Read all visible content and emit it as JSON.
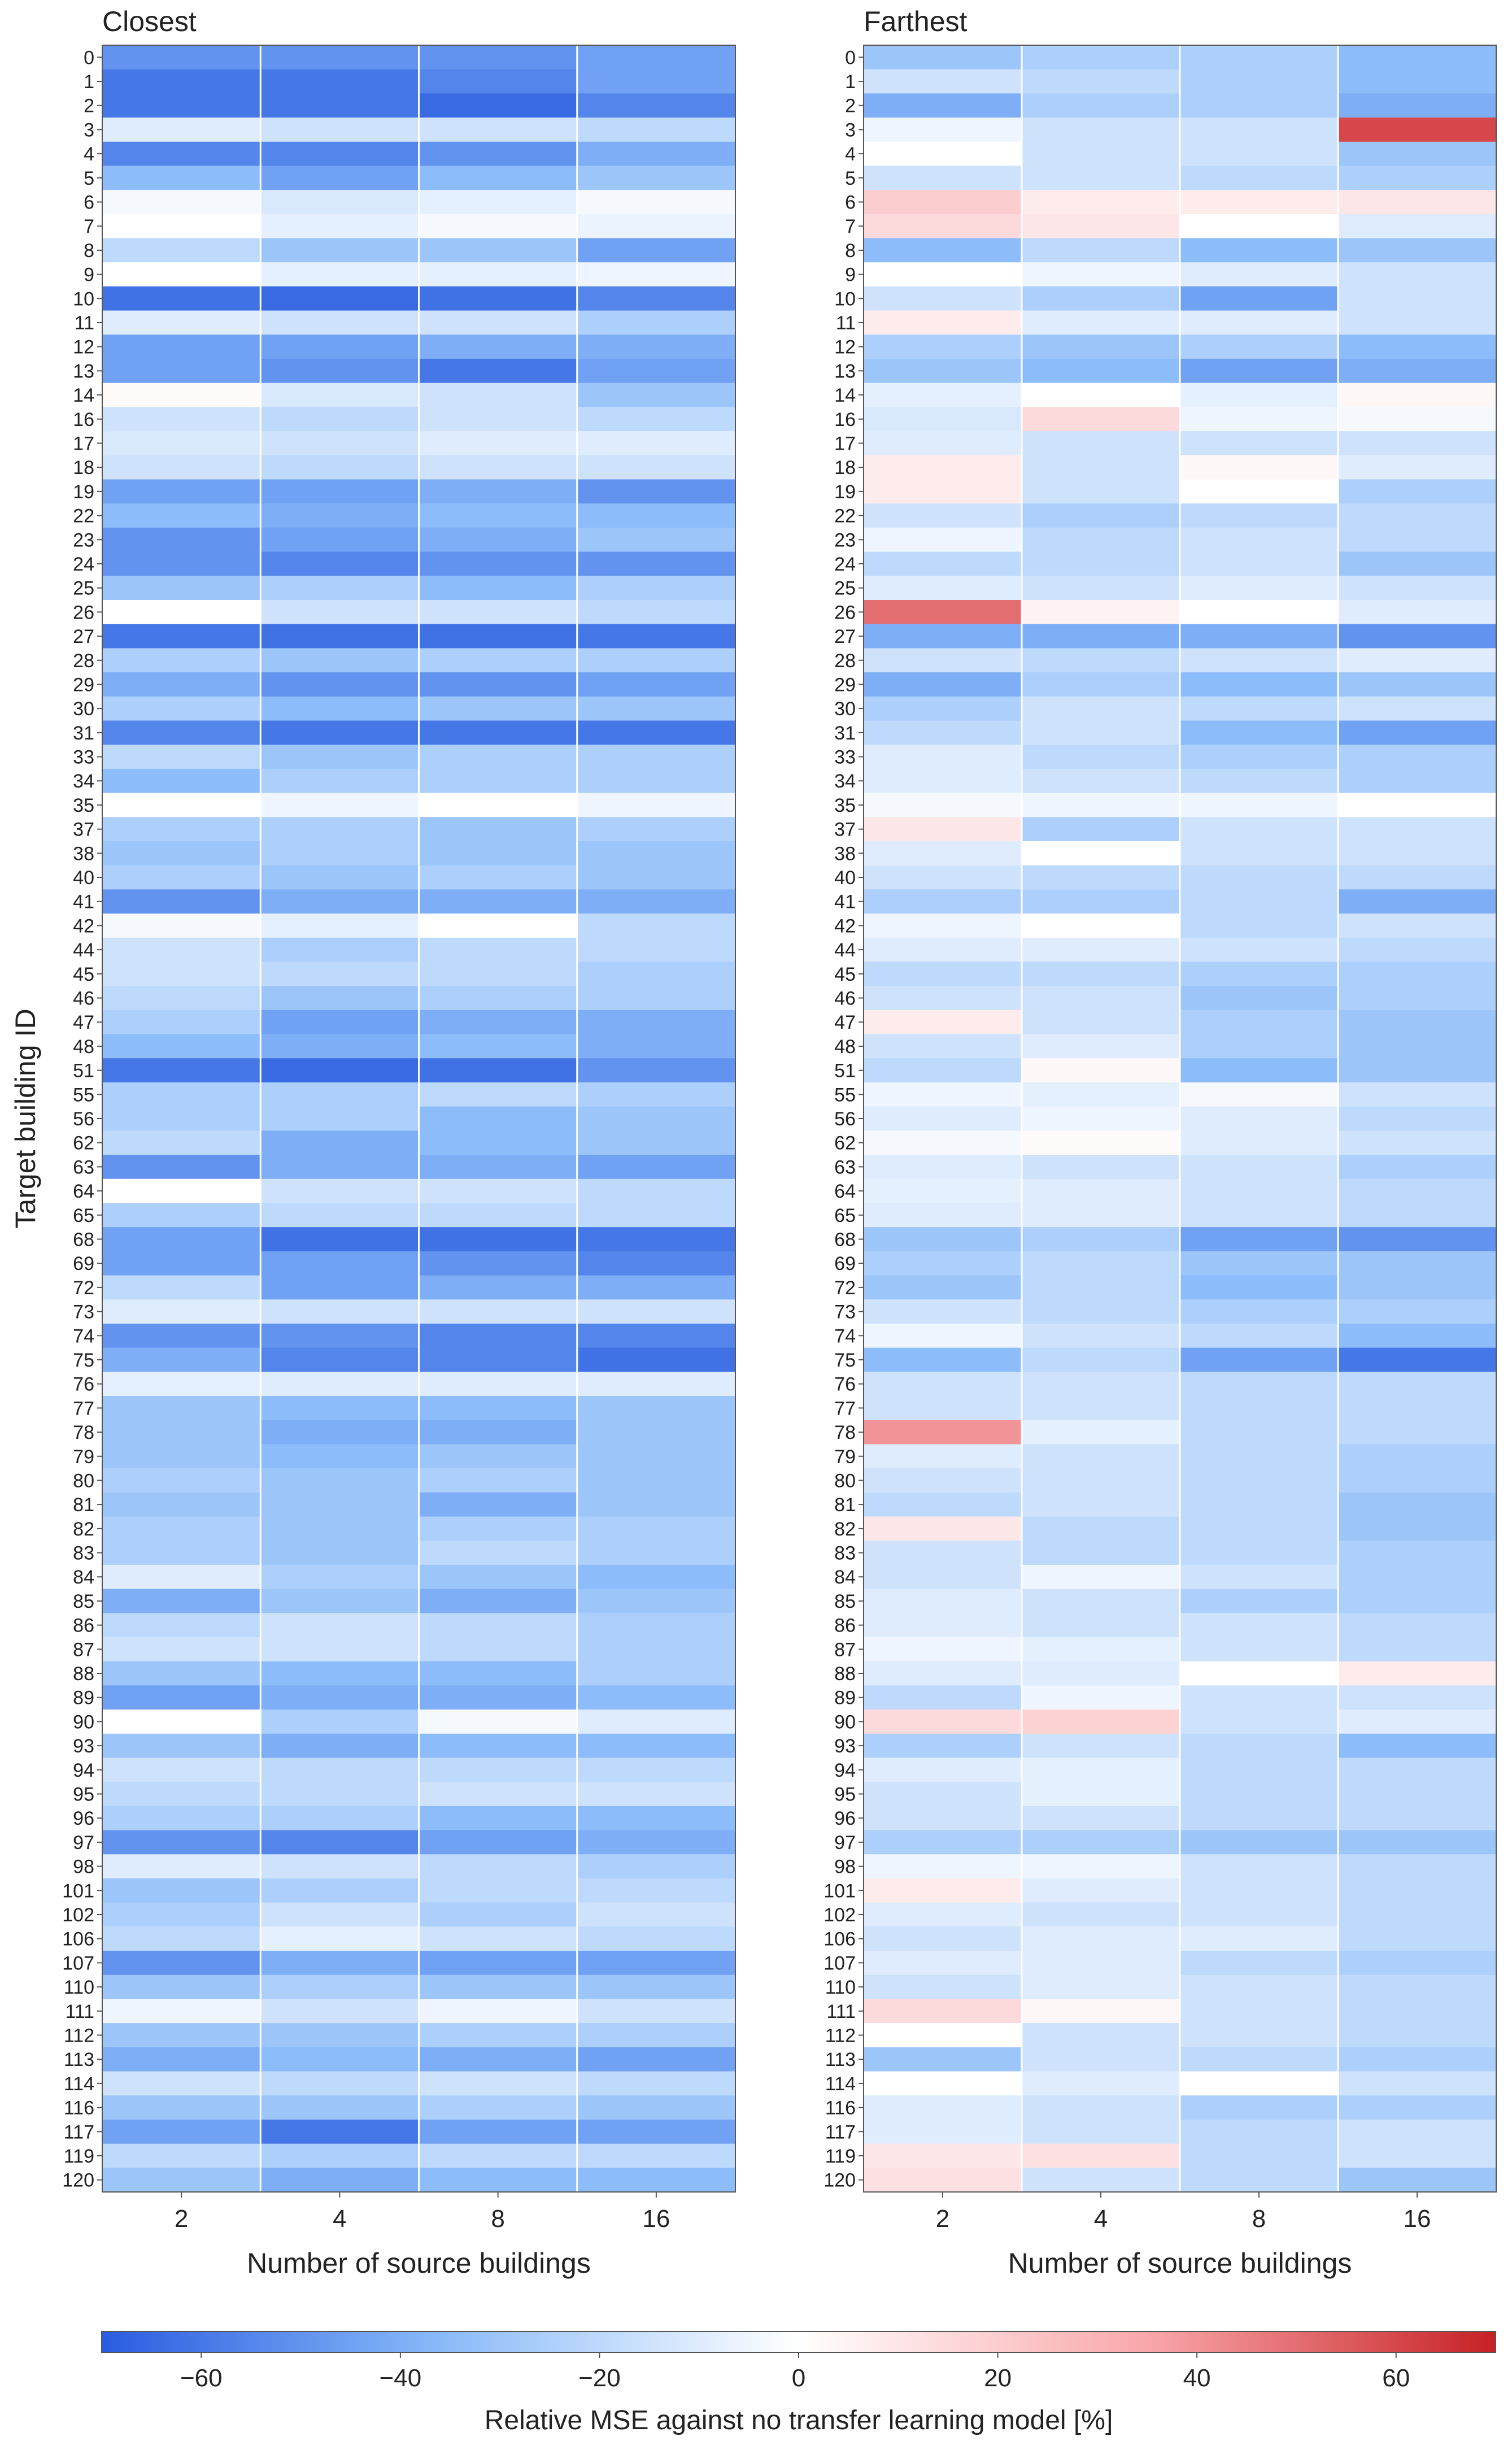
{
  "chart_data": [
    {
      "type": "heatmap",
      "title": "Closest",
      "xlabel": "Number of source buildings",
      "ylabel": "Target building ID",
      "x_categories": [
        "2",
        "4",
        "8",
        "16"
      ],
      "y_categories": [
        "0",
        "1",
        "2",
        "3",
        "4",
        "5",
        "6",
        "7",
        "8",
        "9",
        "10",
        "11",
        "12",
        "13",
        "14",
        "16",
        "17",
        "18",
        "19",
        "22",
        "23",
        "24",
        "25",
        "26",
        "27",
        "28",
        "29",
        "30",
        "31",
        "33",
        "34",
        "35",
        "37",
        "38",
        "40",
        "41",
        "42",
        "44",
        "45",
        "46",
        "47",
        "48",
        "51",
        "55",
        "56",
        "62",
        "63",
        "64",
        "65",
        "68",
        "69",
        "72",
        "73",
        "74",
        "75",
        "76",
        "77",
        "78",
        "79",
        "80",
        "81",
        "82",
        "83",
        "84",
        "85",
        "86",
        "87",
        "88",
        "89",
        "90",
        "93",
        "94",
        "95",
        "96",
        "97",
        "98",
        "101",
        "102",
        "106",
        "107",
        "110",
        "111",
        "112",
        "113",
        "114",
        "116",
        "117",
        "119",
        "120"
      ],
      "values": [
        [
          -50,
          -50,
          -50,
          -45
        ],
        [
          -60,
          -60,
          -55,
          -45
        ],
        [
          -60,
          -60,
          -65,
          -55
        ],
        [
          -10,
          -15,
          -15,
          -20
        ],
        [
          -55,
          -55,
          -50,
          -40
        ],
        [
          -35,
          -45,
          -35,
          -30
        ],
        [
          -3,
          -12,
          -8,
          -3
        ],
        [
          0,
          -8,
          -3,
          -6
        ],
        [
          -20,
          -30,
          -30,
          -45
        ],
        [
          0,
          -8,
          -8,
          -5
        ],
        [
          -62,
          -65,
          -62,
          -55
        ],
        [
          -10,
          -15,
          -15,
          -25
        ],
        [
          -45,
          -45,
          -40,
          -40
        ],
        [
          -45,
          -50,
          -60,
          -45
        ],
        [
          2,
          -12,
          -15,
          -30
        ],
        [
          -15,
          -20,
          -15,
          -20
        ],
        [
          -12,
          -15,
          -10,
          -10
        ],
        [
          -15,
          -20,
          -15,
          -15
        ],
        [
          -45,
          -45,
          -40,
          -50
        ],
        [
          -35,
          -40,
          -35,
          -35
        ],
        [
          -50,
          -45,
          -40,
          -30
        ],
        [
          -50,
          -55,
          -50,
          -50
        ],
        [
          -30,
          -25,
          -35,
          -25
        ],
        [
          0,
          -15,
          -15,
          -20
        ],
        [
          -60,
          -62,
          -62,
          -60
        ],
        [
          -25,
          -30,
          -25,
          -25
        ],
        [
          -40,
          -50,
          -50,
          -45
        ],
        [
          -25,
          -35,
          -30,
          -30
        ],
        [
          -55,
          -60,
          -60,
          -60
        ],
        [
          -20,
          -30,
          -25,
          -25
        ],
        [
          -35,
          -25,
          -25,
          -25
        ],
        [
          0,
          -5,
          0,
          -5
        ],
        [
          -25,
          -25,
          -30,
          -25
        ],
        [
          -30,
          -25,
          -30,
          -30
        ],
        [
          -25,
          -30,
          -25,
          -30
        ],
        [
          -50,
          -40,
          -40,
          -40
        ],
        [
          -3,
          -8,
          0,
          -20
        ],
        [
          -15,
          -25,
          -20,
          -20
        ],
        [
          -15,
          -20,
          -20,
          -25
        ],
        [
          -20,
          -30,
          -25,
          -25
        ],
        [
          -25,
          -45,
          -40,
          -40
        ],
        [
          -35,
          -40,
          -35,
          -40
        ],
        [
          -60,
          -65,
          -62,
          -50
        ],
        [
          -25,
          -25,
          -20,
          -25
        ],
        [
          -25,
          -25,
          -35,
          -30
        ],
        [
          -20,
          -40,
          -35,
          -30
        ],
        [
          -50,
          -40,
          -40,
          -45
        ],
        [
          0,
          -15,
          -15,
          -20
        ],
        [
          -25,
          -20,
          -20,
          -20
        ],
        [
          -45,
          -62,
          -62,
          -60
        ],
        [
          -45,
          -45,
          -50,
          -55
        ],
        [
          -20,
          -45,
          -40,
          -40
        ],
        [
          -10,
          -15,
          -15,
          -15
        ],
        [
          -50,
          -50,
          -55,
          -55
        ],
        [
          -40,
          -55,
          -55,
          -62
        ],
        [
          -8,
          -10,
          -10,
          -10
        ],
        [
          -30,
          -35,
          -35,
          -30
        ],
        [
          -30,
          -40,
          -40,
          -30
        ],
        [
          -30,
          -35,
          -30,
          -30
        ],
        [
          -25,
          -30,
          -25,
          -30
        ],
        [
          -30,
          -30,
          -40,
          -30
        ],
        [
          -25,
          -30,
          -25,
          -25
        ],
        [
          -25,
          -30,
          -20,
          -25
        ],
        [
          -10,
          -25,
          -30,
          -35
        ],
        [
          -40,
          -30,
          -40,
          -30
        ],
        [
          -20,
          -15,
          -20,
          -25
        ],
        [
          -15,
          -15,
          -20,
          -25
        ],
        [
          -30,
          -35,
          -35,
          -25
        ],
        [
          -45,
          -40,
          -40,
          -35
        ],
        [
          0,
          -25,
          -3,
          -10
        ],
        [
          -30,
          -40,
          -35,
          -35
        ],
        [
          -15,
          -20,
          -20,
          -20
        ],
        [
          -20,
          -20,
          -15,
          -15
        ],
        [
          -25,
          -25,
          -35,
          -35
        ],
        [
          -50,
          -55,
          -45,
          -40
        ],
        [
          -10,
          -15,
          -20,
          -25
        ],
        [
          -30,
          -25,
          -20,
          -20
        ],
        [
          -25,
          -15,
          -25,
          -15
        ],
        [
          -20,
          -8,
          -15,
          -20
        ],
        [
          -50,
          -40,
          -45,
          -45
        ],
        [
          -30,
          -25,
          -30,
          -30
        ],
        [
          -5,
          -15,
          -5,
          -15
        ],
        [
          -30,
          -30,
          -25,
          -25
        ],
        [
          -40,
          -35,
          -40,
          -45
        ],
        [
          -15,
          -20,
          -15,
          -20
        ],
        [
          -30,
          -30,
          -25,
          -30
        ],
        [
          -45,
          -60,
          -45,
          -45
        ],
        [
          -20,
          -25,
          -20,
          -20
        ],
        [
          -30,
          -40,
          -35,
          -35
        ]
      ]
    },
    {
      "type": "heatmap",
      "title": "Farthest",
      "xlabel": "Number of source buildings",
      "ylabel": "",
      "x_categories": [
        "2",
        "4",
        "8",
        "16"
      ],
      "y_categories": [
        "0",
        "1",
        "2",
        "3",
        "4",
        "5",
        "6",
        "7",
        "8",
        "9",
        "10",
        "11",
        "12",
        "13",
        "14",
        "16",
        "17",
        "18",
        "19",
        "22",
        "23",
        "24",
        "25",
        "26",
        "27",
        "28",
        "29",
        "30",
        "31",
        "33",
        "34",
        "35",
        "37",
        "38",
        "40",
        "41",
        "42",
        "44",
        "45",
        "46",
        "47",
        "48",
        "51",
        "55",
        "56",
        "62",
        "63",
        "64",
        "65",
        "68",
        "69",
        "72",
        "73",
        "74",
        "75",
        "76",
        "77",
        "78",
        "79",
        "80",
        "81",
        "82",
        "83",
        "84",
        "85",
        "86",
        "87",
        "88",
        "89",
        "90",
        "93",
        "94",
        "95",
        "96",
        "97",
        "98",
        "101",
        "102",
        "106",
        "107",
        "110",
        "111",
        "112",
        "113",
        "114",
        "116",
        "117",
        "119",
        "120"
      ],
      "values": [
        [
          -30,
          -25,
          -25,
          -35
        ],
        [
          -15,
          -20,
          -25,
          -35
        ],
        [
          -40,
          -25,
          -25,
          -40
        ],
        [
          -5,
          -15,
          -15,
          60
        ],
        [
          0,
          -15,
          -15,
          -30
        ],
        [
          -15,
          -15,
          -20,
          -25
        ],
        [
          20,
          8,
          8,
          10
        ],
        [
          15,
          10,
          0,
          -10
        ],
        [
          -35,
          -20,
          -35,
          -30
        ],
        [
          0,
          -5,
          -10,
          -15
        ],
        [
          -15,
          -25,
          -45,
          -15
        ],
        [
          8,
          -10,
          -10,
          -15
        ],
        [
          -25,
          -30,
          -25,
          -35
        ],
        [
          -30,
          -35,
          -45,
          -40
        ],
        [
          -8,
          0,
          -8,
          3
        ],
        [
          -12,
          15,
          -5,
          -3
        ],
        [
          -10,
          -15,
          -15,
          -15
        ],
        [
          8,
          -15,
          3,
          -10
        ],
        [
          8,
          -15,
          0,
          -25
        ],
        [
          -15,
          -25,
          -20,
          -20
        ],
        [
          -5,
          -20,
          -15,
          -20
        ],
        [
          -20,
          -20,
          -15,
          -30
        ],
        [
          -10,
          -15,
          -10,
          -15
        ],
        [
          50,
          5,
          0,
          -10
        ],
        [
          -40,
          -40,
          -40,
          -50
        ],
        [
          -15,
          -20,
          -15,
          -10
        ],
        [
          -40,
          -25,
          -35,
          -30
        ],
        [
          -25,
          -15,
          -20,
          -15
        ],
        [
          -20,
          -15,
          -35,
          -45
        ],
        [
          -10,
          -20,
          -25,
          -25
        ],
        [
          -10,
          -15,
          -20,
          -25
        ],
        [
          -3,
          -5,
          -5,
          0
        ],
        [
          10,
          -25,
          -15,
          -15
        ],
        [
          -10,
          0,
          -15,
          -15
        ],
        [
          -15,
          -20,
          -20,
          -20
        ],
        [
          -25,
          -25,
          -20,
          -40
        ],
        [
          -5,
          0,
          -20,
          -15
        ],
        [
          -10,
          -10,
          -15,
          -20
        ],
        [
          -20,
          -20,
          -25,
          -25
        ],
        [
          -15,
          -15,
          -30,
          -25
        ],
        [
          8,
          -15,
          -25,
          -30
        ],
        [
          -15,
          -10,
          -25,
          -30
        ],
        [
          -20,
          3,
          -35,
          -30
        ],
        [
          -5,
          -8,
          -3,
          -15
        ],
        [
          -10,
          -5,
          -10,
          -20
        ],
        [
          -3,
          2,
          -10,
          -15
        ],
        [
          -10,
          -15,
          -15,
          -25
        ],
        [
          -8,
          -10,
          -15,
          -20
        ],
        [
          -10,
          -10,
          -15,
          -20
        ],
        [
          -30,
          -25,
          -45,
          -50
        ],
        [
          -25,
          -20,
          -30,
          -30
        ],
        [
          -30,
          -20,
          -35,
          -30
        ],
        [
          -15,
          -20,
          -25,
          -25
        ],
        [
          -5,
          -15,
          -20,
          -35
        ],
        [
          -35,
          -20,
          -45,
          -60
        ],
        [
          -15,
          -15,
          -20,
          -20
        ],
        [
          -15,
          -15,
          -20,
          -20
        ],
        [
          40,
          -8,
          -20,
          -20
        ],
        [
          -10,
          -15,
          -20,
          -25
        ],
        [
          -15,
          -15,
          -20,
          -25
        ],
        [
          -20,
          -15,
          -20,
          -30
        ],
        [
          10,
          -20,
          -20,
          -30
        ],
        [
          -15,
          -20,
          -20,
          -25
        ],
        [
          -15,
          -5,
          -15,
          -25
        ],
        [
          -10,
          -15,
          -25,
          -25
        ],
        [
          -10,
          -15,
          -15,
          -20
        ],
        [
          -5,
          -8,
          -15,
          -20
        ],
        [
          -10,
          -10,
          0,
          8
        ],
        [
          -20,
          -5,
          -15,
          -15
        ],
        [
          15,
          18,
          -15,
          -10
        ],
        [
          -25,
          -15,
          -20,
          -35
        ],
        [
          -10,
          -8,
          -20,
          -20
        ],
        [
          -15,
          -8,
          -20,
          -20
        ],
        [
          -15,
          -15,
          -20,
          -20
        ],
        [
          -25,
          -25,
          -30,
          -30
        ],
        [
          -5,
          -5,
          -15,
          -20
        ],
        [
          8,
          -10,
          -15,
          -20
        ],
        [
          -10,
          -15,
          -15,
          -20
        ],
        [
          -15,
          -10,
          -10,
          -20
        ],
        [
          -10,
          -10,
          -20,
          -25
        ],
        [
          -15,
          -10,
          -15,
          -20
        ],
        [
          15,
          3,
          -15,
          -20
        ],
        [
          0,
          -15,
          -15,
          -20
        ],
        [
          -30,
          -15,
          -20,
          -25
        ],
        [
          0,
          -10,
          0,
          -15
        ],
        [
          -10,
          -15,
          -25,
          -25
        ],
        [
          -10,
          -15,
          -20,
          -15
        ],
        [
          10,
          12,
          -20,
          -15
        ],
        [
          12,
          -15,
          -20,
          -30
        ]
      ]
    }
  ],
  "colorbar": {
    "label": "Relative MSE against no transfer learning model [%]",
    "min": -70,
    "max": 70,
    "ticks": [
      "−60",
      "−40",
      "−20",
      "0",
      "20",
      "40",
      "60"
    ],
    "tick_values": [
      -60,
      -40,
      -20,
      0,
      20,
      40,
      60
    ],
    "colors": {
      "negative_end": "#2a5ce0",
      "mid_negative": "#8cbcf9",
      "center": "#ffffff",
      "mid_positive": "#f9a7aa",
      "positive_end": "#c62125"
    }
  }
}
